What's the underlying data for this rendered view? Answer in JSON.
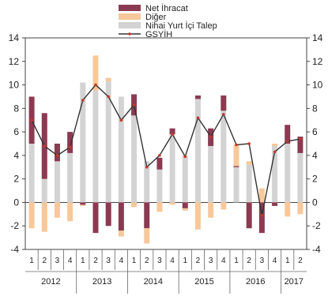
{
  "chart_data": {
    "type": "bar",
    "subtype": "stacked-bar-with-line",
    "title": "",
    "xlabel": "",
    "ylabel": "",
    "ylim": [
      -4,
      14
    ],
    "yticks": [
      -4,
      -2,
      0,
      2,
      4,
      6,
      8,
      10,
      12,
      14
    ],
    "grid": false,
    "legend_position": "top-center",
    "year_labels": [
      "2012",
      "2013",
      "2014",
      "2015",
      "2016",
      "2017"
    ],
    "categories": [
      {
        "year": "2012",
        "quarter": "1"
      },
      {
        "year": "2012",
        "quarter": "2"
      },
      {
        "year": "2012",
        "quarter": "3"
      },
      {
        "year": "2012",
        "quarter": "4"
      },
      {
        "year": "2013",
        "quarter": "1"
      },
      {
        "year": "2013",
        "quarter": "2"
      },
      {
        "year": "2013",
        "quarter": "3"
      },
      {
        "year": "2013",
        "quarter": "4"
      },
      {
        "year": "2014",
        "quarter": "1"
      },
      {
        "year": "2014",
        "quarter": "2"
      },
      {
        "year": "2014",
        "quarter": "3"
      },
      {
        "year": "2014",
        "quarter": "4"
      },
      {
        "year": "2015",
        "quarter": "1"
      },
      {
        "year": "2015",
        "quarter": "2"
      },
      {
        "year": "2015",
        "quarter": "3"
      },
      {
        "year": "2015",
        "quarter": "4"
      },
      {
        "year": "2016",
        "quarter": "1"
      },
      {
        "year": "2016",
        "quarter": "2"
      },
      {
        "year": "2016",
        "quarter": "3"
      },
      {
        "year": "2016",
        "quarter": "4"
      },
      {
        "year": "2017",
        "quarter": "1"
      },
      {
        "year": "2017",
        "quarter": "2"
      }
    ],
    "series": [
      {
        "name": "Net İhracat",
        "kind": "bar",
        "color": "#8b3a52",
        "values": [
          4.0,
          5.6,
          1.5,
          1.8,
          -0.2,
          -2.6,
          -2.0,
          -2.4,
          1.8,
          -2.2,
          1.0,
          0.5,
          -0.5,
          0.3,
          1.5,
          1.3,
          0.1,
          -2.2,
          -2.6,
          -0.3,
          1.6,
          1.4
        ]
      },
      {
        "name": "Diğer",
        "kind": "bar",
        "color": "#f7c89a",
        "values": [
          -2.2,
          -2.5,
          -1.3,
          -1.6,
          -0.1,
          3.0,
          0.3,
          -0.5,
          -0.4,
          -1.3,
          -0.8,
          -0.2,
          -0.2,
          -2.3,
          -1.3,
          -0.6,
          1.8,
          0.3,
          1.2,
          0.2,
          -1.2,
          -1.0
        ]
      },
      {
        "name": "Nihai Yurt İçi Talep",
        "kind": "bar",
        "color": "#d3d3d3",
        "values": [
          5.0,
          2.0,
          3.5,
          4.2,
          10.2,
          9.5,
          10.3,
          9.0,
          7.4,
          3.5,
          2.8,
          5.8,
          4.0,
          8.8,
          4.8,
          7.8,
          3.0,
          3.2,
          0.0,
          4.8,
          5.0,
          4.2
        ]
      },
      {
        "name": "GSYİH",
        "kind": "line",
        "color": "#333333",
        "marker_color": "#c0392b",
        "values": [
          7.0,
          4.8,
          4.0,
          4.7,
          8.7,
          10.0,
          9.0,
          7.0,
          8.3,
          3.0,
          4.0,
          5.8,
          3.9,
          7.2,
          5.6,
          7.5,
          4.9,
          5.0,
          -1.1,
          4.3,
          5.2,
          5.4
        ]
      }
    ]
  }
}
